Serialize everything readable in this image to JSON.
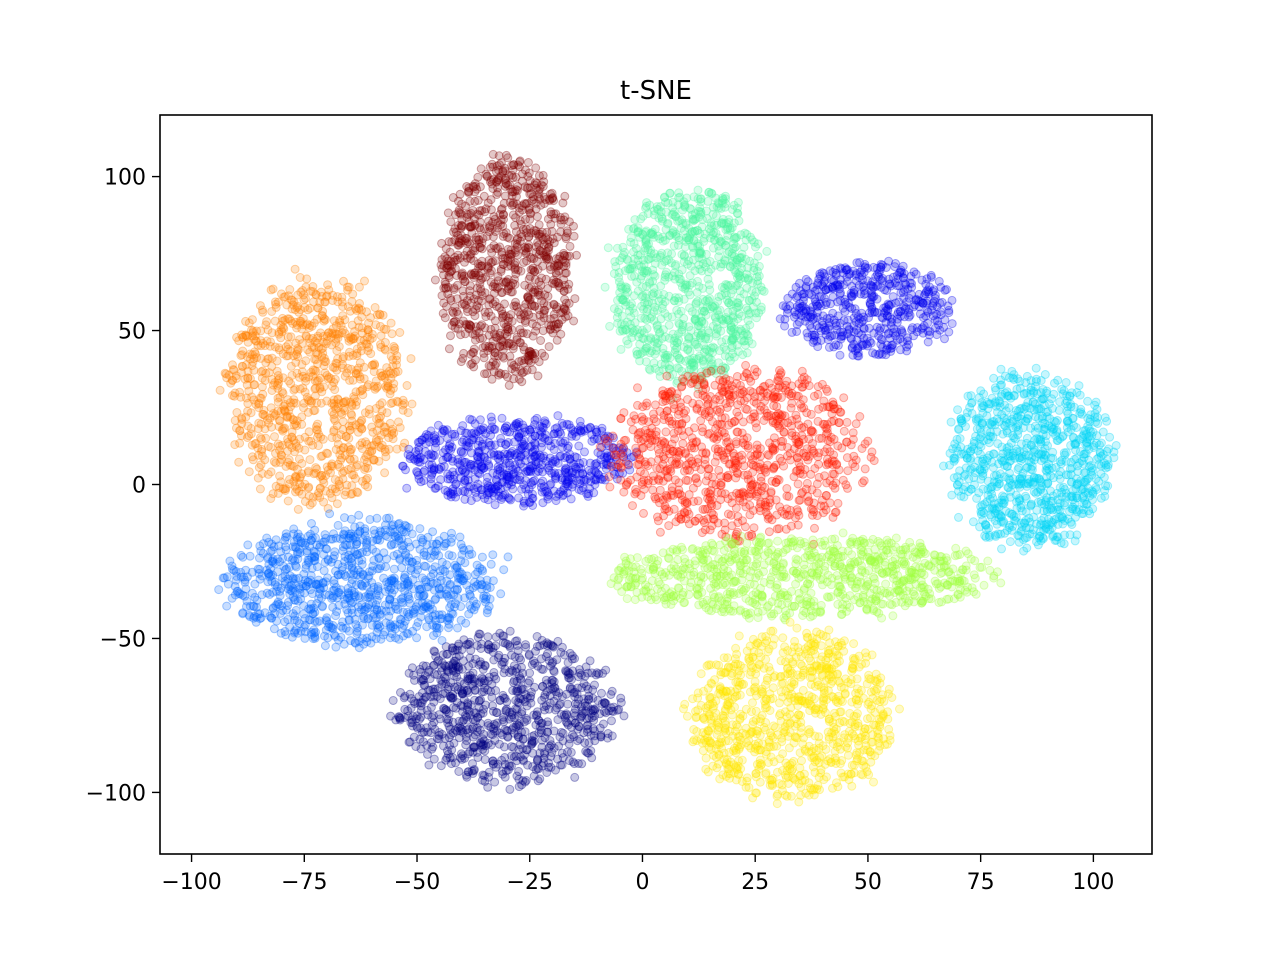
{
  "chart_data": {
    "type": "scatter",
    "title": "t-SNE",
    "xlabel": "",
    "ylabel": "",
    "xlim": [
      -107,
      113
    ],
    "ylim": [
      -120,
      120
    ],
    "xticks": [
      -100,
      -75,
      -50,
      -25,
      0,
      25,
      50,
      75,
      100
    ],
    "yticks": [
      100,
      50,
      0,
      -50,
      -100
    ],
    "xtick_labels": [
      "−100",
      "−75",
      "−50",
      "−25",
      "0",
      "25",
      "50",
      "75",
      "100"
    ],
    "ytick_labels": [
      "100",
      "50",
      "0",
      "−50",
      "−100"
    ],
    "grid": false,
    "legend": "none",
    "clusters": [
      {
        "color": "#ff8000",
        "center": [
          -72,
          30
        ],
        "radius": [
          20,
          36
        ],
        "count": 900
      },
      {
        "color": "#800000",
        "center": [
          -30,
          70
        ],
        "radius": [
          15,
          36
        ],
        "count": 850
      },
      {
        "color": "#4df5a0",
        "center": [
          10,
          65
        ],
        "radius": [
          17,
          32
        ],
        "count": 850
      },
      {
        "color": "#0000ee",
        "center": [
          50,
          57
        ],
        "radius": [
          19,
          15
        ],
        "count": 500
      },
      {
        "color": "#0000ee",
        "center": [
          -28,
          8
        ],
        "radius": [
          25,
          14
        ],
        "count": 650
      },
      {
        "color": "#ff1a00",
        "center": [
          22,
          10
        ],
        "radius": [
          28,
          28
        ],
        "count": 900
      },
      {
        "color": "#00d5f5",
        "center": [
          86,
          8
        ],
        "radius": [
          18,
          28
        ],
        "count": 850
      },
      {
        "color": "#0066ff",
        "center": [
          -62,
          -32
        ],
        "radius": [
          30,
          20
        ],
        "count": 900
      },
      {
        "color": "#a0ff40",
        "center": [
          35,
          -30
        ],
        "radius": [
          42,
          13
        ],
        "count": 850
      },
      {
        "color": "#000080",
        "center": [
          -30,
          -73
        ],
        "radius": [
          24,
          24
        ],
        "count": 850
      },
      {
        "color": "#ffe600",
        "center": [
          33,
          -75
        ],
        "radius": [
          22,
          28
        ],
        "count": 850
      }
    ]
  }
}
